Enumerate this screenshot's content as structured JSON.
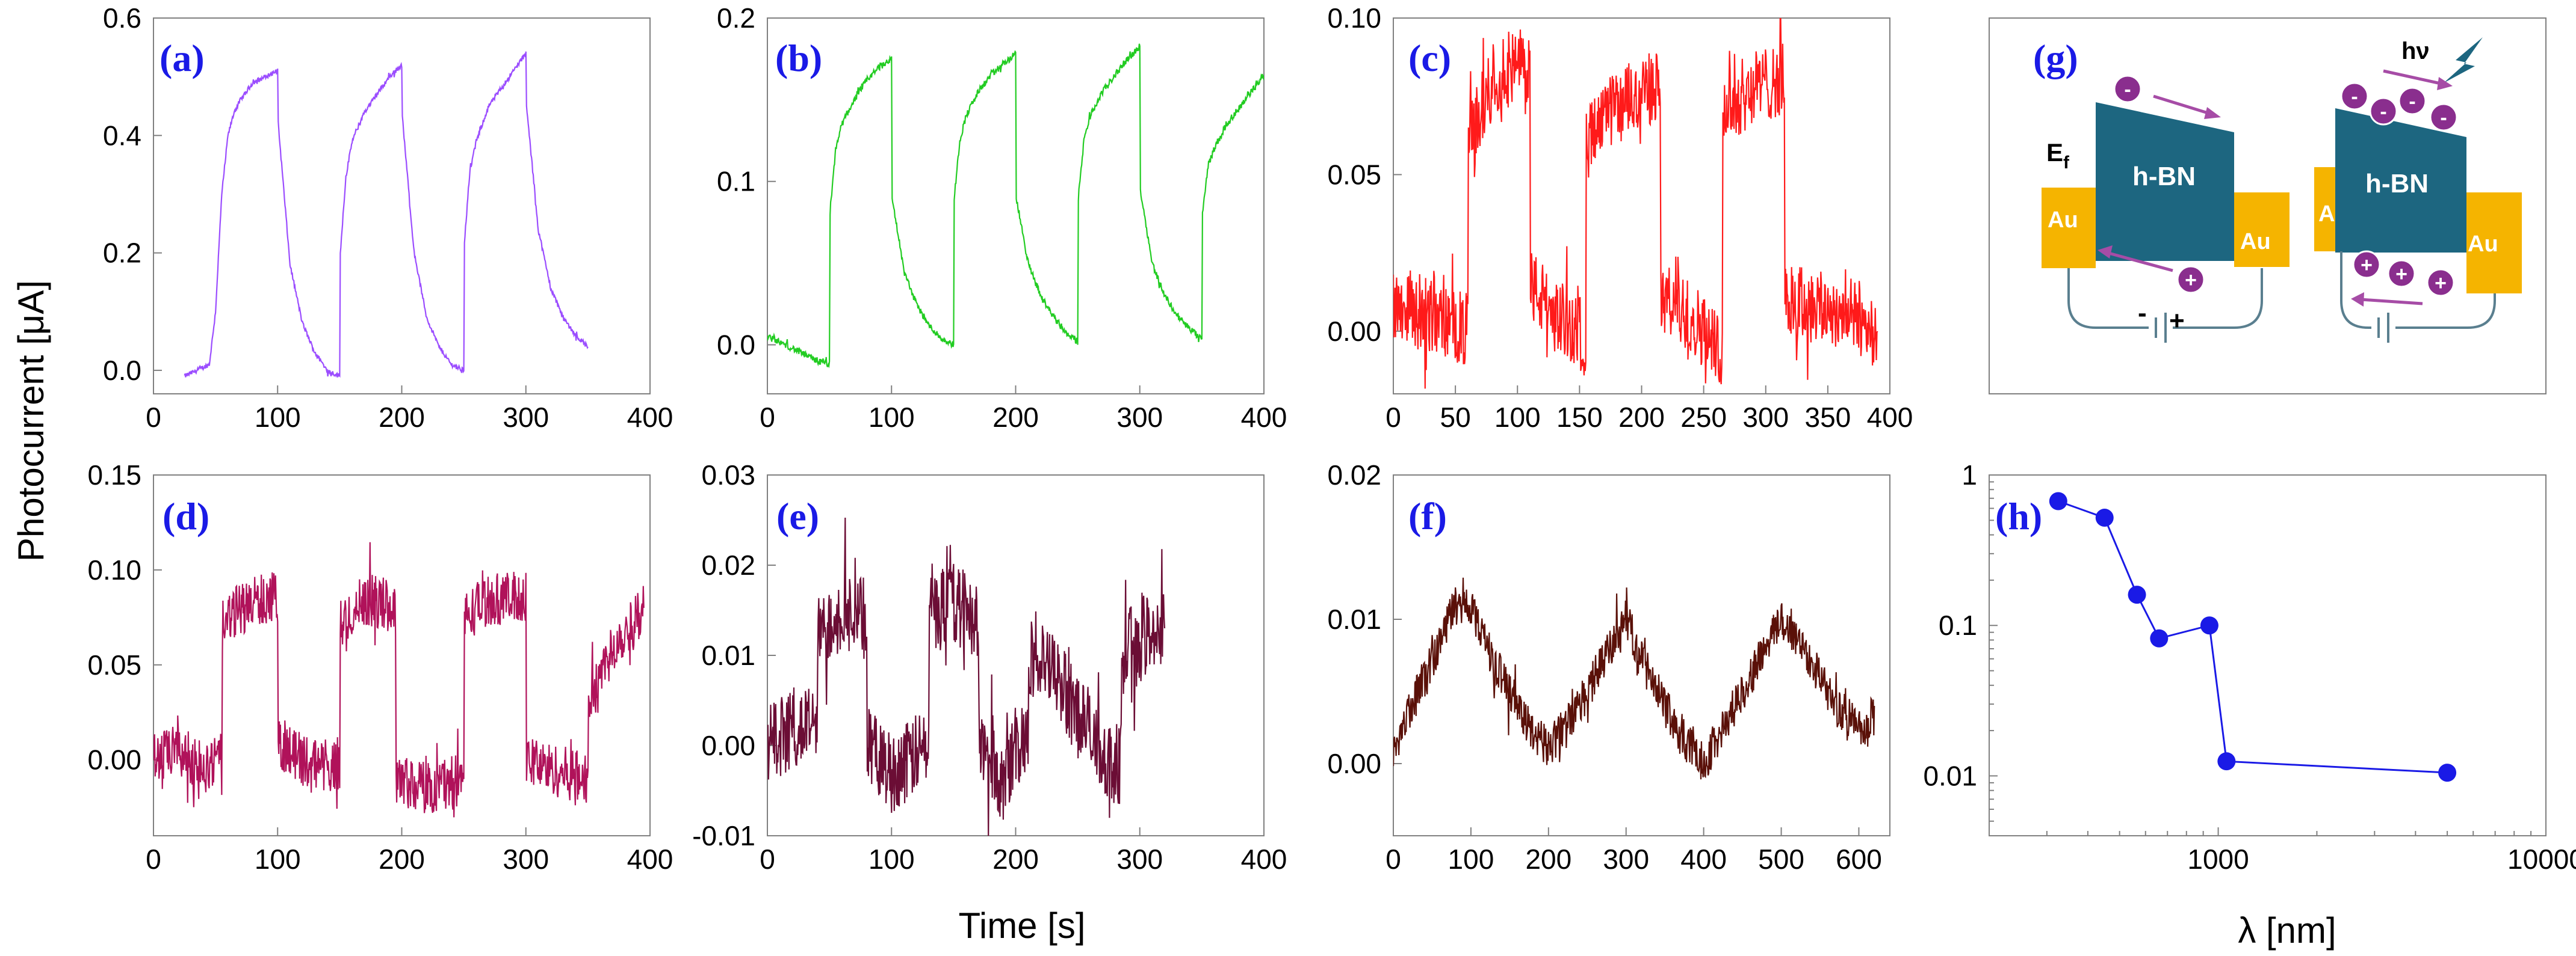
{
  "figure": {
    "ylabel": "Photocurrent [μA]",
    "xlabel_time": "Time [s]",
    "xlabel_lambda": "λ [nm]"
  },
  "chart_data": [
    {
      "id": "a",
      "label": "(a)",
      "type": "line",
      "color": "#9b4dff",
      "xlim": [
        0,
        400
      ],
      "ylim": [
        -0.04,
        0.6
      ],
      "xticks": [
        "0",
        "100",
        "200",
        "300",
        "400"
      ],
      "yticks": [
        "0.0",
        "0.2",
        "0.4",
        "0.6"
      ],
      "x": [
        25,
        45,
        50,
        55,
        60,
        65,
        70,
        80,
        90,
        100,
        100.5,
        110,
        120,
        130,
        140,
        150,
        150.5,
        155,
        160,
        170,
        180,
        190,
        200,
        200.5,
        210,
        220,
        230,
        240,
        250,
        250.5,
        255,
        260,
        270,
        280,
        290,
        300,
        300.5,
        310,
        320,
        330,
        340,
        350
      ],
      "y": [
        -0.01,
        0.01,
        0.1,
        0.3,
        0.4,
        0.44,
        0.46,
        0.49,
        0.5,
        0.51,
        0.42,
        0.18,
        0.08,
        0.03,
        0.0,
        -0.01,
        0.2,
        0.33,
        0.39,
        0.44,
        0.47,
        0.5,
        0.52,
        0.43,
        0.2,
        0.09,
        0.04,
        0.01,
        0.0,
        0.22,
        0.34,
        0.39,
        0.45,
        0.48,
        0.51,
        0.54,
        0.45,
        0.24,
        0.14,
        0.09,
        0.06,
        0.04
      ],
      "noise": 0.004
    },
    {
      "id": "b",
      "label": "(b)",
      "type": "line",
      "color": "#22cc22",
      "xlim": [
        0,
        400
      ],
      "ylim": [
        -0.03,
        0.2
      ],
      "xticks": [
        "0",
        "100",
        "200",
        "300",
        "400"
      ],
      "yticks": [
        "0.0",
        "0.1",
        "0.2"
      ],
      "x": [
        0,
        20,
        40,
        50,
        50.5,
        55,
        60,
        70,
        80,
        90,
        100,
        100.5,
        110,
        120,
        130,
        140,
        150,
        150.5,
        155,
        160,
        170,
        180,
        190,
        200,
        200.5,
        210,
        220,
        230,
        240,
        250,
        250.5,
        255,
        260,
        270,
        280,
        290,
        300,
        300.5,
        310,
        320,
        330,
        340,
        350,
        350.5,
        355,
        360,
        370,
        380,
        390,
        400
      ],
      "y": [
        0.005,
        -0.002,
        -0.01,
        -0.012,
        0.08,
        0.12,
        0.135,
        0.15,
        0.162,
        0.17,
        0.175,
        0.09,
        0.045,
        0.025,
        0.012,
        0.004,
        0.0,
        0.09,
        0.125,
        0.14,
        0.155,
        0.165,
        0.172,
        0.178,
        0.09,
        0.05,
        0.03,
        0.018,
        0.008,
        0.002,
        0.09,
        0.125,
        0.14,
        0.155,
        0.165,
        0.175,
        0.182,
        0.095,
        0.05,
        0.03,
        0.018,
        0.01,
        0.003,
        0.08,
        0.11,
        0.12,
        0.135,
        0.145,
        0.155,
        0.165
      ],
      "noise": 0.002
    },
    {
      "id": "c",
      "label": "(c)",
      "type": "line",
      "color": "#ff1a1a",
      "xlim": [
        0,
        400
      ],
      "ylim": [
        -0.02,
        0.1
      ],
      "xticks": [
        "0",
        "50",
        "100",
        "150",
        "200",
        "250",
        "300",
        "350",
        "400"
      ],
      "yticks": [
        "0.00",
        "0.05",
        "0.10"
      ],
      "x": [
        0,
        30,
        60,
        60.5,
        80,
        105,
        110,
        110.5,
        130,
        150,
        155,
        155.5,
        180,
        210,
        215,
        215.5,
        240,
        260,
        265,
        265.5,
        290,
        310,
        315,
        315.5,
        340,
        370,
        390
      ],
      "y": [
        0.01,
        0.005,
        0.0,
        0.06,
        0.08,
        0.085,
        0.085,
        0.015,
        0.005,
        0.0,
        -0.005,
        0.06,
        0.072,
        0.078,
        0.078,
        0.01,
        0.005,
        -0.005,
        -0.005,
        0.07,
        0.078,
        0.08,
        0.08,
        0.01,
        0.008,
        0.005,
        0.0
      ],
      "noise": 0.012
    },
    {
      "id": "d",
      "label": "(d)",
      "type": "line",
      "color": "#b0125a",
      "xlim": [
        0,
        400
      ],
      "ylim": [
        -0.04,
        0.15
      ],
      "xticks": [
        "0",
        "100",
        "200",
        "300",
        "400"
      ],
      "yticks": [
        "0.00",
        "0.05",
        "0.10",
        "0.15"
      ],
      "x": [
        0,
        20,
        40,
        55,
        55.5,
        70,
        90,
        100,
        100.5,
        120,
        150,
        150.5,
        170,
        195,
        195.5,
        220,
        250,
        250.5,
        270,
        300,
        300.5,
        320,
        350,
        350.5,
        370,
        395
      ],
      "y": [
        0.0,
        0.005,
        -0.005,
        0.0,
        0.07,
        0.08,
        0.085,
        0.085,
        0.01,
        0.0,
        -0.005,
        0.07,
        0.085,
        0.08,
        -0.01,
        -0.015,
        -0.01,
        0.075,
        0.085,
        0.085,
        0.0,
        -0.005,
        -0.01,
        0.03,
        0.06,
        0.08
      ],
      "noise": 0.014
    },
    {
      "id": "e",
      "label": "(e)",
      "type": "line",
      "color": "#6b0d35",
      "xlim": [
        0,
        400
      ],
      "ylim": [
        -0.01,
        0.03
      ],
      "xticks": [
        "0",
        "100",
        "200",
        "300",
        "400"
      ],
      "yticks": [
        "-0.01",
        "0.00",
        "0.01",
        "0.02",
        "0.03"
      ],
      "x": [
        0,
        20,
        40,
        40.5,
        60,
        80,
        80.5,
        100,
        130,
        130.5,
        150,
        170,
        170.5,
        190,
        210,
        210.5,
        230,
        260,
        260.5,
        280,
        285,
        285.5,
        300,
        320
      ],
      "y": [
        0.0,
        0.002,
        0.002,
        0.012,
        0.015,
        0.014,
        0.0,
        -0.003,
        0.0,
        0.015,
        0.016,
        0.014,
        0.0,
        -0.004,
        0.002,
        0.01,
        0.008,
        0.002,
        0.0,
        -0.002,
        -0.002,
        0.01,
        0.012,
        0.013
      ],
      "noise": 0.0045
    },
    {
      "id": "f",
      "label": "(f)",
      "type": "line",
      "color": "#5a1008",
      "xlim": [
        0,
        640
      ],
      "ylim": [
        -0.005,
        0.02
      ],
      "xticks": [
        "0",
        "100",
        "200",
        "300",
        "400",
        "500",
        "600"
      ],
      "yticks": [
        "0.00",
        "0.01",
        "0.02"
      ],
      "x": [
        0,
        40,
        80,
        100,
        130,
        170,
        200,
        240,
        280,
        300,
        330,
        370,
        400,
        440,
        480,
        500,
        530,
        570,
        610,
        620
      ],
      "y": [
        0.001,
        0.006,
        0.011,
        0.011,
        0.007,
        0.003,
        0.001,
        0.004,
        0.008,
        0.01,
        0.006,
        0.002,
        0.0,
        0.004,
        0.008,
        0.01,
        0.008,
        0.004,
        0.002,
        0.004
      ],
      "noise": 0.0014
    },
    {
      "id": "h",
      "label": "(h)",
      "type": "scatter",
      "color": "#1a1ae6",
      "xscale": "log",
      "yscale": "log",
      "xlim": [
        200,
        10000
      ],
      "ylim": [
        0.004,
        1
      ],
      "xticks": [
        "1000",
        "10000"
      ],
      "yticks": [
        "0.01",
        "0.1",
        "1"
      ],
      "x": [
        325,
        450,
        565,
        660,
        940,
        1060,
        5000
      ],
      "y": [
        0.67,
        0.52,
        0.16,
        0.082,
        0.1,
        0.0125,
        0.0105
      ]
    }
  ],
  "diagram": {
    "label": "(g)",
    "ef": "E",
    "ef_sub": "f",
    "au": "Au",
    "hbn": "h-BN",
    "hv": "hν",
    "minus": "-",
    "plus": "+"
  },
  "colors": {
    "au": "#f5b400",
    "hbn": "#1d6680",
    "particle": "#8a2e8e",
    "arrow": "#a64ca6",
    "bolt": "#1d6680",
    "wire": "#5a7f8f"
  }
}
